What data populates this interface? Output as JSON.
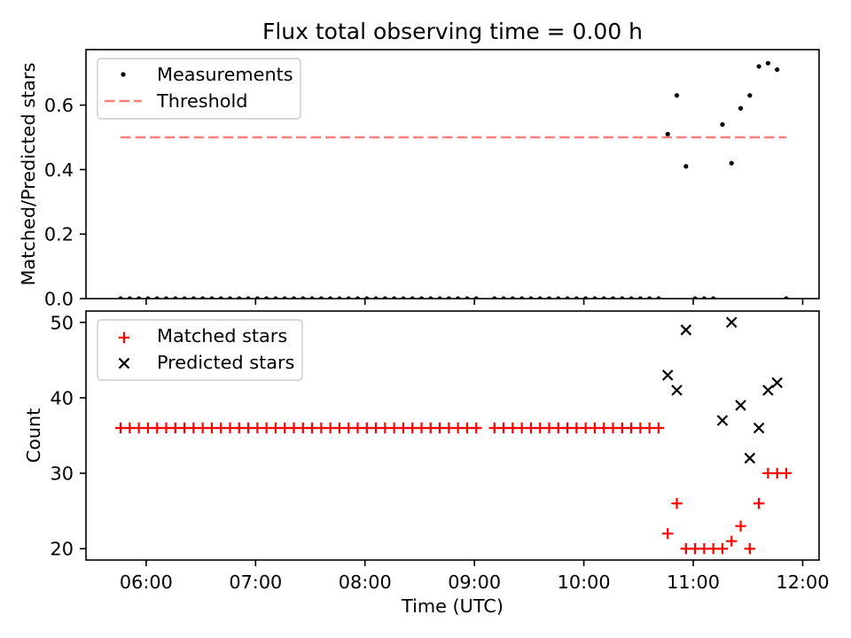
{
  "chart_data": [
    {
      "type": "scatter",
      "title": "Flux total observing time = 0.00 h",
      "ylabel": "Matched/Predicted stars",
      "x": [
        "05:46",
        "05:51",
        "05:56",
        "06:01",
        "06:06",
        "06:11",
        "06:16",
        "06:21",
        "06:26",
        "06:31",
        "06:36",
        "06:41",
        "06:46",
        "06:51",
        "06:56",
        "07:01",
        "07:06",
        "07:11",
        "07:16",
        "07:21",
        "07:26",
        "07:31",
        "07:36",
        "07:41",
        "07:46",
        "07:51",
        "07:56",
        "08:01",
        "08:06",
        "08:11",
        "08:16",
        "08:21",
        "08:26",
        "08:31",
        "08:36",
        "08:41",
        "08:46",
        "08:51",
        "08:56",
        "09:01",
        "09:11",
        "09:16",
        "09:21",
        "09:26",
        "09:31",
        "09:36",
        "09:41",
        "09:46",
        "09:51",
        "09:56",
        "10:01",
        "10:06",
        "10:11",
        "10:16",
        "10:21",
        "10:26",
        "10:31",
        "10:36",
        "10:41",
        "10:46",
        "10:51",
        "10:56",
        "11:01",
        "11:06",
        "11:11",
        "11:16",
        "11:21",
        "11:26",
        "11:31",
        "11:36",
        "11:41",
        "11:46",
        "11:51"
      ],
      "xlim": [
        "05:27",
        "12:09"
      ],
      "ylim": [
        0,
        0.772
      ],
      "yticks": [
        0,
        0.2,
        0.4,
        0.6
      ],
      "ytick_labels": [
        "0.0",
        "0.2",
        "0.4",
        "0.6"
      ],
      "grid": false,
      "legend": "upper left",
      "series": [
        {
          "name": "Measurements",
          "marker": "dot",
          "color": "#000000",
          "values": [
            0,
            0,
            0,
            0,
            0,
            0,
            0,
            0,
            0,
            0,
            0,
            0,
            0,
            0,
            0,
            0,
            0,
            0,
            0,
            0,
            0,
            0,
            0,
            0,
            0,
            0,
            0,
            0,
            0,
            0,
            0,
            0,
            0,
            0,
            0,
            0,
            0,
            0,
            0,
            0,
            0,
            0,
            0,
            0,
            0,
            0,
            0,
            0,
            0,
            0,
            0,
            0,
            0,
            0,
            0,
            0,
            0,
            0,
            0,
            0.51,
            0.63,
            0.41,
            0,
            0,
            0,
            0.54,
            0.42,
            0.59,
            0.63,
            0.72,
            0.73,
            0.71,
            0
          ]
        },
        {
          "name": "Threshold",
          "type": "line",
          "style": "dashed",
          "color": "#ff7f7f",
          "x": [
            "05:46",
            "11:51"
          ],
          "values": [
            0.5,
            0.5
          ]
        }
      ]
    },
    {
      "type": "scatter",
      "xlabel": "Time (UTC)",
      "ylabel": "Count",
      "x": [
        "05:46",
        "05:51",
        "05:56",
        "06:01",
        "06:06",
        "06:11",
        "06:16",
        "06:21",
        "06:26",
        "06:31",
        "06:36",
        "06:41",
        "06:46",
        "06:51",
        "06:56",
        "07:01",
        "07:06",
        "07:11",
        "07:16",
        "07:21",
        "07:26",
        "07:31",
        "07:36",
        "07:41",
        "07:46",
        "07:51",
        "07:56",
        "08:01",
        "08:06",
        "08:11",
        "08:16",
        "08:21",
        "08:26",
        "08:31",
        "08:36",
        "08:41",
        "08:46",
        "08:51",
        "08:56",
        "09:01",
        "09:11",
        "09:16",
        "09:21",
        "09:26",
        "09:31",
        "09:36",
        "09:41",
        "09:46",
        "09:51",
        "09:56",
        "10:01",
        "10:06",
        "10:11",
        "10:16",
        "10:21",
        "10:26",
        "10:31",
        "10:36",
        "10:41",
        "10:46",
        "10:51",
        "10:56",
        "11:01",
        "11:06",
        "11:11",
        "11:16",
        "11:21",
        "11:26",
        "11:31",
        "11:36",
        "11:41",
        "11:46",
        "11:51"
      ],
      "xlim": [
        "05:27",
        "12:09"
      ],
      "xticks": [
        "06:00",
        "07:00",
        "08:00",
        "09:00",
        "10:00",
        "11:00",
        "12:00"
      ],
      "ylim": [
        18.5,
        51.5
      ],
      "yticks": [
        20,
        30,
        40,
        50
      ],
      "ytick_labels": [
        "20",
        "30",
        "40",
        "50"
      ],
      "grid": false,
      "legend": "upper left",
      "series": [
        {
          "name": "Matched stars",
          "marker": "plus",
          "color": "#ff0000",
          "values": [
            36,
            36,
            36,
            36,
            36,
            36,
            36,
            36,
            36,
            36,
            36,
            36,
            36,
            36,
            36,
            36,
            36,
            36,
            36,
            36,
            36,
            36,
            36,
            36,
            36,
            36,
            36,
            36,
            36,
            36,
            36,
            36,
            36,
            36,
            36,
            36,
            36,
            36,
            36,
            36,
            36,
            36,
            36,
            36,
            36,
            36,
            36,
            36,
            36,
            36,
            36,
            36,
            36,
            36,
            36,
            36,
            36,
            36,
            36,
            22,
            26,
            20,
            20,
            20,
            20,
            20,
            21,
            23,
            20,
            26,
            30,
            30,
            30
          ]
        },
        {
          "name": "Predicted stars",
          "marker": "cross",
          "color": "#000000",
          "values": [
            null,
            null,
            null,
            null,
            null,
            null,
            null,
            null,
            null,
            null,
            null,
            null,
            null,
            null,
            null,
            null,
            null,
            null,
            null,
            null,
            null,
            null,
            null,
            null,
            null,
            null,
            null,
            null,
            null,
            null,
            null,
            null,
            null,
            null,
            null,
            null,
            null,
            null,
            null,
            null,
            null,
            null,
            null,
            null,
            null,
            null,
            null,
            null,
            null,
            null,
            null,
            null,
            null,
            null,
            null,
            null,
            null,
            null,
            null,
            43,
            41,
            49,
            null,
            null,
            null,
            37,
            50,
            39,
            32,
            36,
            41,
            42,
            null
          ]
        }
      ]
    }
  ]
}
